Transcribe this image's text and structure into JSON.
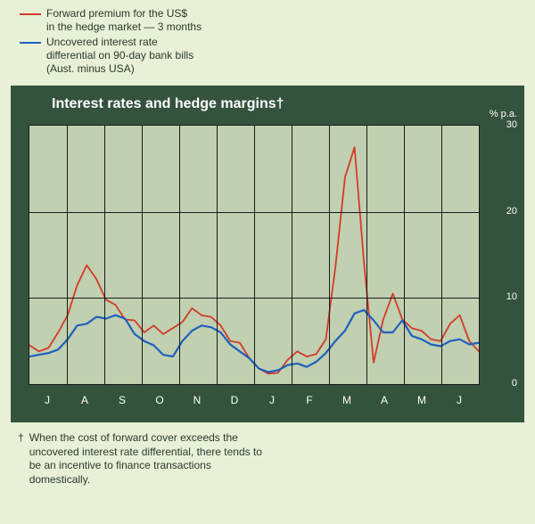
{
  "legend": {
    "items": [
      {
        "color": "#d43a2a",
        "label": "Forward premium for the US$\nin the hedge market — 3 months"
      },
      {
        "color": "#1f5fbf",
        "label": "Uncovered interest rate\ndifferential on 90-day bank bills\n(Aust. minus USA)"
      }
    ]
  },
  "chart": {
    "title": "Interest rates and hedge margins†",
    "yaxis_caption": "% p.a.",
    "background_panel": "#34533d",
    "plot_background": "#c0d0b0",
    "grid_color": "#1a1a1a",
    "title_color": "#ffffff",
    "axis_label_color": "#ffffff",
    "title_fontsize": 16,
    "axis_fontsize": 11,
    "ylim": [
      0,
      30
    ],
    "yticks": [
      0,
      10,
      20,
      30
    ],
    "x_categories": [
      "J",
      "A",
      "S",
      "O",
      "N",
      "D",
      "J",
      "F",
      "M",
      "A",
      "M",
      "J"
    ],
    "x_count": 48,
    "series": [
      {
        "name": "forward_premium",
        "color": "#d43a2a",
        "line_width": 1.8,
        "y": [
          4.5,
          3.8,
          4.2,
          6.0,
          8.0,
          11.5,
          13.8,
          12.2,
          9.8,
          9.2,
          7.5,
          7.4,
          6.0,
          6.8,
          5.8,
          6.5,
          7.2,
          8.8,
          8.0,
          7.8,
          6.8,
          5.0,
          4.8,
          3.0,
          1.8,
          1.2,
          1.3,
          2.8,
          3.8,
          3.2,
          3.5,
          5.2,
          13.5,
          24.0,
          27.5,
          14.0,
          2.5,
          7.5,
          10.5,
          7.5,
          6.5,
          6.2,
          5.2,
          5.0,
          7.0,
          8.0,
          5.0,
          3.8
        ]
      },
      {
        "name": "uncovered_ird",
        "color": "#1f5fbf",
        "line_width": 2.2,
        "y": [
          3.2,
          3.4,
          3.6,
          4.0,
          5.2,
          6.8,
          7.0,
          7.8,
          7.6,
          8.0,
          7.6,
          5.8,
          5.0,
          4.5,
          3.4,
          3.2,
          5.0,
          6.2,
          6.8,
          6.6,
          6.0,
          4.6,
          3.8,
          3.0,
          1.8,
          1.4,
          1.6,
          2.2,
          2.4,
          2.0,
          2.6,
          3.6,
          5.0,
          6.2,
          8.2,
          8.6,
          7.4,
          6.0,
          6.0,
          7.4,
          5.6,
          5.2,
          4.6,
          4.4,
          5.0,
          5.2,
          4.6,
          4.8
        ]
      }
    ]
  },
  "footnote": {
    "symbol": "†",
    "text": "When the cost of forward cover exceeds the uncovered interest rate differential, there tends to be an incentive to finance transactions domestically."
  }
}
